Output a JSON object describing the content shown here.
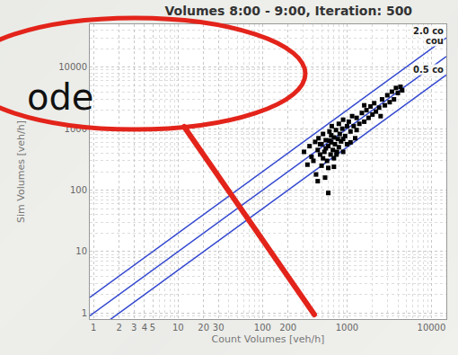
{
  "slide": {
    "text": "ode"
  },
  "chart_data": {
    "type": "scatter",
    "title": "Volumes 8:00 - 9:00, Iteration: 500",
    "x_label": "Count Volumes [veh/h]",
    "y_label": "Sim Volumes [veh/h]",
    "log": true,
    "grid": true,
    "xlim": [
      0.9,
      15000
    ],
    "ylim": [
      0.8,
      50000
    ],
    "xticks": [
      1,
      2,
      3,
      4,
      5,
      10,
      20,
      30,
      100,
      200,
      1000,
      10000
    ],
    "yticks": [
      1,
      10,
      100,
      1000,
      10000
    ],
    "reference_lines": [
      {
        "ratio": 2,
        "label": "2.0 co",
        "color": "#3348d0"
      },
      {
        "ratio": 1,
        "label": "cou",
        "color": "#3348d0"
      },
      {
        "ratio": 0.5,
        "label": "0.5 co",
        "color": "#3348d0"
      }
    ],
    "series": [
      {
        "type": "scatter",
        "color": "#000000",
        "marker": "square",
        "x": [
          310,
          340,
          360,
          380,
          400,
          420,
          430,
          450,
          460,
          480,
          500,
          500,
          520,
          540,
          550,
          560,
          580,
          600,
          600,
          620,
          640,
          650,
          660,
          680,
          700,
          700,
          720,
          740,
          750,
          780,
          800,
          800,
          820,
          850,
          880,
          900,
          900,
          950,
          1000,
          1000,
          1050,
          1100,
          1150,
          1200,
          1250,
          1300,
          1400,
          1500,
          1600,
          1700,
          1800,
          1900,
          2000,
          2100,
          2200,
          2400,
          2600,
          2800,
          3000,
          3200,
          3400,
          3600,
          3800,
          4000,
          4300,
          4500,
          450,
          520,
          600,
          650,
          700,
          560,
          480,
          620,
          760,
          900,
          1100,
          1300,
          1600,
          2500
        ],
        "values": [
          420,
          260,
          520,
          350,
          300,
          610,
          180,
          450,
          700,
          380,
          250,
          560,
          820,
          420,
          160,
          650,
          300,
          520,
          90,
          900,
          380,
          600,
          1100,
          450,
          720,
          240,
          560,
          950,
          380,
          680,
          1200,
          500,
          820,
          620,
          1000,
          420,
          1400,
          760,
          1100,
          560,
          1300,
          900,
          1600,
          1100,
          700,
          1500,
          1200,
          1800,
          1300,
          2000,
          1500,
          2300,
          1700,
          2600,
          1900,
          2200,
          3000,
          2400,
          3500,
          2700,
          4000,
          3000,
          4600,
          3800,
          4800,
          4200,
          140,
          330,
          230,
          780,
          330,
          480,
          560,
          640,
          420,
          680,
          600,
          950,
          2400,
          1600
        ]
      }
    ]
  }
}
